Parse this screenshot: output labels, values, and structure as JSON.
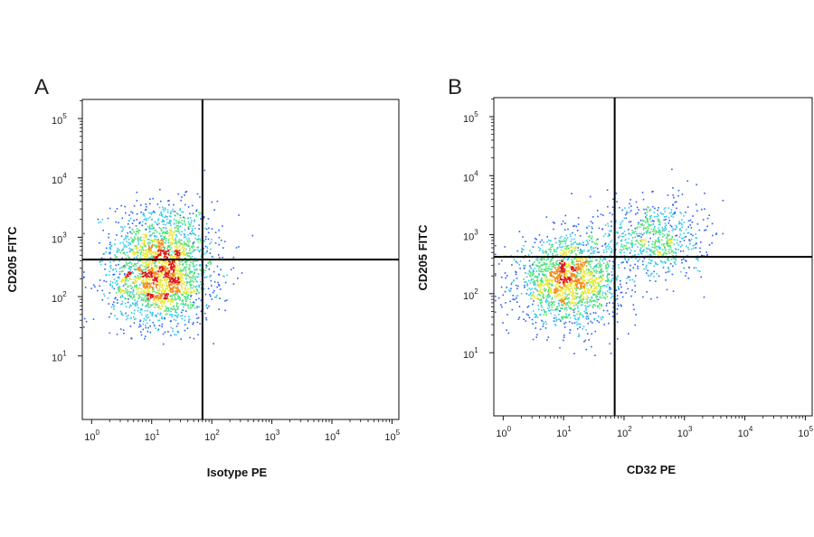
{
  "chart_data": [
    {
      "type": "scatter",
      "panel_label": "A",
      "xlabel": "Isotype PE",
      "ylabel": "CD205 FITC",
      "xscale": "log",
      "yscale": "log",
      "xlim": [
        0.7,
        130000
      ],
      "ylim": [
        0.85,
        210000
      ],
      "x_ticks": [
        1,
        10,
        100,
        1000,
        10000,
        100000
      ],
      "y_ticks": [
        10,
        100,
        1000,
        10000,
        100000
      ],
      "tick_base": "10",
      "x_tick_exponents": [
        "0",
        "1",
        "2",
        "3",
        "4",
        "5"
      ],
      "y_tick_exponents": [
        "1",
        "2",
        "3",
        "4",
        "5"
      ],
      "quadrant_gate": {
        "x": 70,
        "y": 420
      },
      "populations": [
        {
          "name": "",
          "x_center": 15,
          "y_center": 800,
          "weight": 0.35
        },
        {
          "name": "",
          "x_center": 14,
          "y_center": 180,
          "weight": 0.65
        }
      ],
      "grid": false,
      "legend": "none"
    },
    {
      "type": "scatter",
      "panel_label": "B",
      "xlabel": "CD32 PE",
      "ylabel": "CD205 FITC",
      "xscale": "log",
      "yscale": "log",
      "xlim": [
        0.7,
        130000
      ],
      "ylim": [
        0.85,
        210000
      ],
      "x_ticks": [
        1,
        10,
        100,
        1000,
        10000,
        100000
      ],
      "y_ticks": [
        10,
        100,
        1000,
        10000,
        100000
      ],
      "tick_base": "10",
      "x_tick_exponents": [
        "0",
        "1",
        "2",
        "3",
        "4",
        "5"
      ],
      "y_tick_exponents": [
        "1",
        "2",
        "3",
        "4",
        "5"
      ],
      "quadrant_gate": {
        "x": 70,
        "y": 420
      },
      "populations": [
        {
          "name": "",
          "x_center": 12,
          "y_center": 170,
          "weight": 0.72
        },
        {
          "name": "",
          "x_center": 300,
          "y_center": 850,
          "weight": 0.28
        }
      ],
      "grid": false,
      "legend": "none"
    }
  ],
  "density_colors": [
    "#1a1a9e",
    "#2a5ef5",
    "#35c8e8",
    "#50e07a",
    "#e8e83a",
    "#f08a1c",
    "#d81818"
  ]
}
